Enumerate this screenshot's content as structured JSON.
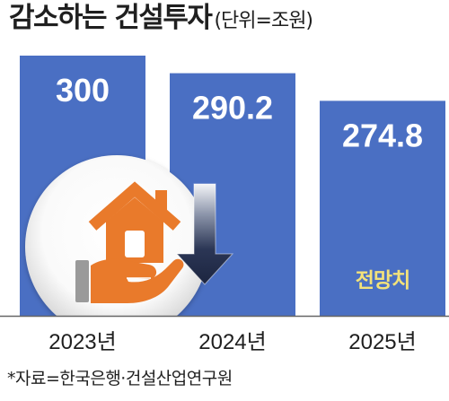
{
  "colors": {
    "bar": "#4a6fc3",
    "value": "#ffffff",
    "forecast": "#f3e27a",
    "house": "#e97a2b",
    "arrow": "#1e2842",
    "text": "#1f1f1f"
  },
  "icons": {
    "illustration": "house-in-hand-icon",
    "trend_arrow": "down-arrow-icon"
  },
  "chart_data": {
    "type": "bar",
    "title": "감소하는 건설투자",
    "unit_label": "(단위=조원)",
    "categories": [
      "2023년",
      "2024년",
      "2025년"
    ],
    "values": [
      300,
      290.2,
      274.8
    ],
    "annotations": [
      {
        "category_index": 2,
        "text": "전망치"
      }
    ],
    "ylim": [
      155,
      300
    ],
    "grid": false,
    "source": "*자료=한국은행·건설산업연구원"
  }
}
